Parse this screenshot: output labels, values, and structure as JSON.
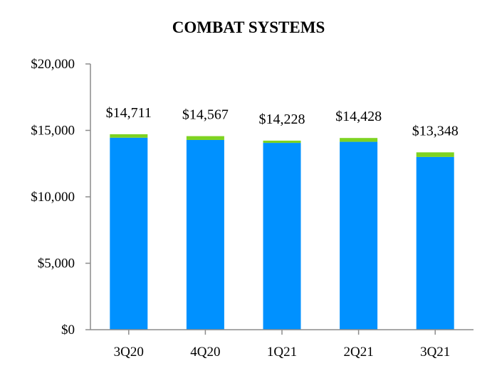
{
  "chart_data": {
    "type": "bar",
    "title": "COMBAT SYSTEMS",
    "categories": [
      "3Q20",
      "4Q20",
      "1Q21",
      "2Q21",
      "3Q21"
    ],
    "series": [
      {
        "values": [
          14450,
          14280,
          14060,
          14140,
          13000
        ],
        "color": "#0091FF"
      },
      {
        "values": [
          261,
          287,
          168,
          288,
          348
        ],
        "color": "#7ED321"
      }
    ],
    "totals": [
      14711,
      14567,
      14228,
      14428,
      13348
    ],
    "total_labels": [
      "$14,711",
      "$14,567",
      "$14,228",
      "$14,428",
      "$13,348"
    ],
    "y_ticks": [
      0,
      5000,
      10000,
      15000,
      20000
    ],
    "y_tick_labels": [
      "$0",
      "$5,000",
      "$10,000",
      "$15,000",
      "$20,000"
    ],
    "ylim": [
      0,
      20000
    ],
    "xlabel": "",
    "ylabel": "",
    "grid": false,
    "axis_color": "#8c8c8c"
  }
}
